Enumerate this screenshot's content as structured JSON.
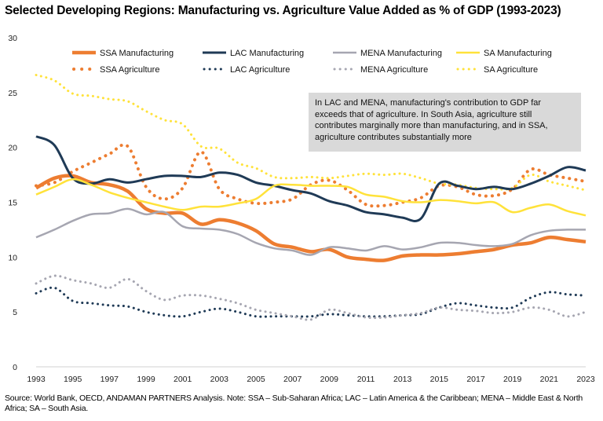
{
  "title": "Selected Developing Regions: Manufacturing vs. Agriculture Value Added as % of GDP (1993-2023)",
  "annotation": "In LAC and MENA, manufacturing's contribution to GDP far exceeds that of agriculture. In South Asia, agriculture still contributes marginally more than manufacturing, and in SSA, agriculture contributes substantially more",
  "source": "Source: World Bank, OECD, ANDAMAN PARTNERS Analysis. Note: SSA – Sub-Saharan Africa; LAC – Latin America & the Caribbean; MENA – Middle East & North Africa; SA – South Asia.",
  "colors": {
    "ssa": "#ed7d31",
    "lac": "#1f3a56",
    "mena": "#a6a6b1",
    "sa": "#ffe23a"
  },
  "chart_data": {
    "type": "line",
    "title": "Selected Developing Regions: Manufacturing vs. Agriculture Value Added as % of GDP (1993-2023)",
    "xlabel": "",
    "ylabel": "",
    "ylim": [
      0,
      30
    ],
    "xlim": [
      1993,
      2023
    ],
    "grid": false,
    "legend_position": "top",
    "x": [
      1993,
      1994,
      1995,
      1996,
      1997,
      1998,
      1999,
      2000,
      2001,
      2002,
      2003,
      2004,
      2005,
      2006,
      2007,
      2008,
      2009,
      2010,
      2011,
      2012,
      2013,
      2014,
      2015,
      2016,
      2017,
      2018,
      2019,
      2020,
      2021,
      2022,
      2023
    ],
    "x_tick_labels": [
      "1993",
      "1995",
      "1997",
      "1999",
      "2001",
      "2003",
      "2005",
      "2007",
      "2009",
      "2011",
      "2013",
      "2015",
      "2017",
      "2019",
      "2021",
      "2023"
    ],
    "y_tick_labels": [
      "0",
      "5",
      "10",
      "15",
      "20",
      "25",
      "30"
    ],
    "series": [
      {
        "name": "SSA Manufacturing",
        "style": "solid",
        "color": "#ed7d31",
        "values": [
          16.3,
          17.2,
          17.4,
          16.8,
          16.6,
          16.0,
          14.4,
          14.0,
          14.0,
          13.0,
          13.4,
          13.1,
          12.4,
          11.2,
          10.9,
          10.5,
          10.7,
          10.0,
          9.8,
          9.7,
          10.1,
          10.2,
          10.2,
          10.3,
          10.5,
          10.7,
          11.1,
          11.3,
          11.8,
          11.6,
          11.4
        ]
      },
      {
        "name": "LAC Manufacturing",
        "style": "solid",
        "color": "#1f3a56",
        "values": [
          21.0,
          20.2,
          17.2,
          16.7,
          17.1,
          16.8,
          17.1,
          17.4,
          17.4,
          17.3,
          17.7,
          17.5,
          16.8,
          16.5,
          16.1,
          15.8,
          15.1,
          14.7,
          14.1,
          13.9,
          13.6,
          13.5,
          16.7,
          16.5,
          16.2,
          16.4,
          16.2,
          16.7,
          17.4,
          18.2,
          17.9
        ]
      },
      {
        "name": "MENA Manufacturing",
        "style": "solid",
        "color": "#a6a6b1",
        "values": [
          11.8,
          12.5,
          13.3,
          13.9,
          14.0,
          14.4,
          13.9,
          14.1,
          12.8,
          12.6,
          12.5,
          12.1,
          11.3,
          10.8,
          10.6,
          10.2,
          10.9,
          10.8,
          10.6,
          11.0,
          10.7,
          10.9,
          11.3,
          11.3,
          11.1,
          11.0,
          11.2,
          12.0,
          12.4,
          12.5,
          12.5
        ]
      },
      {
        "name": "SA Manufacturing",
        "style": "solid",
        "color": "#ffe23a",
        "values": [
          15.7,
          16.4,
          17.1,
          16.6,
          15.9,
          15.4,
          15.0,
          14.6,
          14.3,
          14.6,
          14.6,
          14.9,
          15.3,
          16.5,
          16.6,
          16.5,
          16.5,
          16.4,
          15.7,
          15.5,
          15.1,
          15.0,
          15.2,
          15.1,
          14.9,
          15.0,
          14.1,
          14.5,
          14.8,
          14.2,
          13.8
        ]
      },
      {
        "name": "SSA Agriculture",
        "style": "dotted",
        "color": "#ed7d31",
        "values": [
          16.5,
          16.8,
          17.8,
          18.6,
          19.4,
          20.1,
          16.4,
          15.3,
          16.3,
          19.6,
          16.2,
          15.3,
          14.9,
          15.0,
          15.3,
          16.6,
          17.0,
          16.1,
          14.8,
          14.7,
          15.0,
          15.4,
          16.5,
          16.4,
          15.7,
          15.6,
          16.2,
          18.0,
          17.5,
          17.2,
          16.9
        ]
      },
      {
        "name": "LAC Agriculture",
        "style": "dotted",
        "color": "#1f3a56",
        "values": [
          6.7,
          7.2,
          6.0,
          5.8,
          5.6,
          5.5,
          5.0,
          4.7,
          4.6,
          5.0,
          5.3,
          5.0,
          4.6,
          4.6,
          4.6,
          4.6,
          4.8,
          4.7,
          4.6,
          4.6,
          4.7,
          4.8,
          5.4,
          5.8,
          5.6,
          5.4,
          5.4,
          6.3,
          6.8,
          6.6,
          6.5
        ]
      },
      {
        "name": "MENA Agriculture",
        "style": "dotted",
        "color": "#a6a6b1",
        "values": [
          7.6,
          8.3,
          7.9,
          7.6,
          7.2,
          8.0,
          6.9,
          6.1,
          6.5,
          6.5,
          6.2,
          5.8,
          5.2,
          4.9,
          4.6,
          4.3,
          5.2,
          4.9,
          4.5,
          4.5,
          4.7,
          4.9,
          5.4,
          5.2,
          5.1,
          4.9,
          5.0,
          5.4,
          5.2,
          4.6,
          5.0
        ]
      },
      {
        "name": "SA Agriculture",
        "style": "dotted",
        "color": "#ffe23a",
        "values": [
          26.6,
          26.1,
          24.9,
          24.7,
          24.4,
          24.2,
          23.3,
          22.5,
          22.1,
          20.1,
          19.9,
          18.6,
          18.1,
          17.3,
          17.2,
          17.3,
          17.2,
          17.4,
          17.6,
          17.5,
          17.6,
          17.2,
          16.7,
          16.6,
          16.3,
          16.2,
          16.3,
          17.5,
          16.9,
          16.5,
          16.1
        ]
      }
    ],
    "legend": [
      "SSA Manufacturing",
      "LAC Manufacturing",
      "MENA Manufacturing",
      "SA Manufacturing",
      "SSA Agriculture",
      "LAC Agriculture",
      "MENA Agriculture",
      "SA Agriculture"
    ]
  }
}
